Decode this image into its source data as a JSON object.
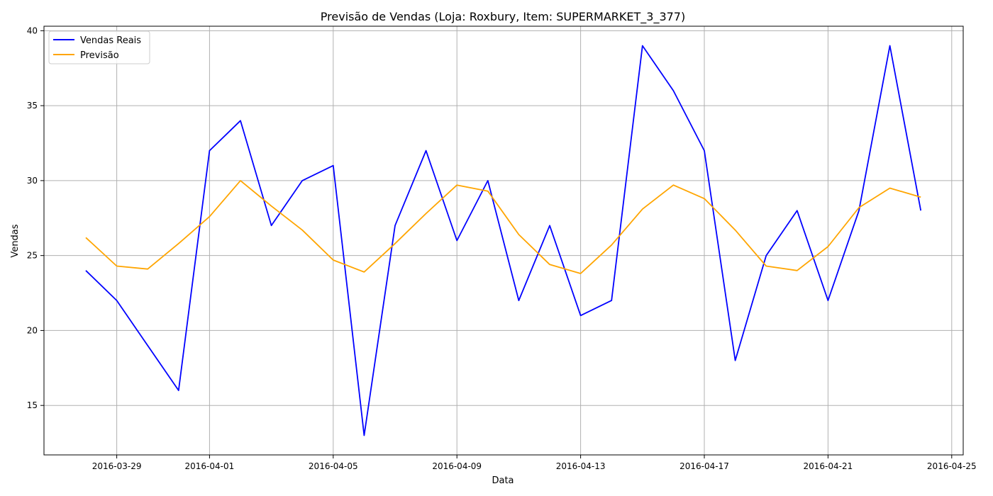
{
  "chart_data": {
    "type": "line",
    "title": "Previsão de Vendas (Loja: Roxbury, Item: SUPERMARKET_3_377)",
    "xlabel": "Data",
    "ylabel": "Vendas",
    "ylim": [
      11.7,
      40.3
    ],
    "xlim": [
      "2016-03-27",
      "2016-04-25"
    ],
    "grid": true,
    "legend_position": "top-left",
    "x_ticks": [
      "2016-03-29",
      "2016-04-01",
      "2016-04-05",
      "2016-04-09",
      "2016-04-13",
      "2016-04-17",
      "2016-04-21",
      "2016-04-25"
    ],
    "y_ticks": [
      15,
      20,
      25,
      30,
      35,
      40
    ],
    "x": [
      "2016-03-28",
      "2016-03-29",
      "2016-03-30",
      "2016-03-31",
      "2016-04-01",
      "2016-04-02",
      "2016-04-03",
      "2016-04-04",
      "2016-04-05",
      "2016-04-06",
      "2016-04-07",
      "2016-04-08",
      "2016-04-09",
      "2016-04-10",
      "2016-04-11",
      "2016-04-12",
      "2016-04-13",
      "2016-04-14",
      "2016-04-15",
      "2016-04-16",
      "2016-04-17",
      "2016-04-18",
      "2016-04-19",
      "2016-04-20",
      "2016-04-21",
      "2016-04-22",
      "2016-04-23",
      "2016-04-24"
    ],
    "series": [
      {
        "name": "Vendas Reais",
        "color": "#0000ff",
        "values": [
          24,
          22,
          19,
          16,
          32,
          34,
          27,
          30,
          31,
          13,
          27,
          32,
          26,
          30,
          22,
          27,
          21,
          22,
          39,
          36,
          32,
          18,
          25,
          28,
          22,
          28,
          39,
          28
        ]
      },
      {
        "name": "Previsão",
        "color": "#ffa500",
        "values": [
          26.2,
          24.3,
          24.1,
          25.8,
          27.6,
          30.0,
          28.3,
          26.7,
          24.7,
          23.9,
          25.8,
          27.8,
          29.7,
          29.3,
          26.4,
          24.4,
          23.8,
          25.7,
          28.1,
          29.7,
          28.8,
          26.7,
          24.3,
          24.0,
          25.6,
          28.2,
          29.5,
          28.9
        ]
      }
    ]
  }
}
